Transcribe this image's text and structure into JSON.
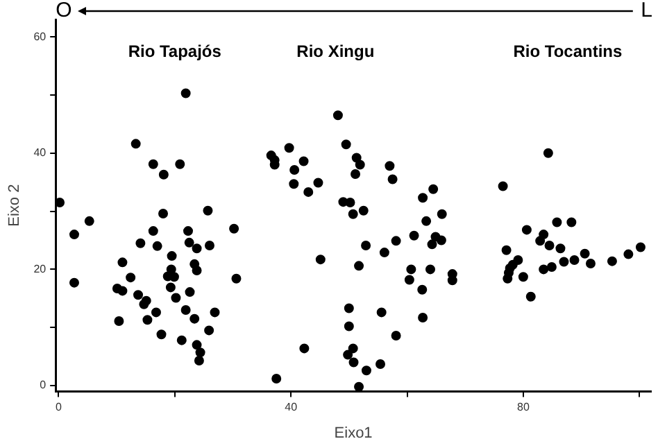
{
  "chart_data": {
    "type": "scatter",
    "xlabel": "Eixo1",
    "ylabel": "Eixo 2",
    "xlim": [
      -0.5,
      102
    ],
    "ylim": [
      -1,
      63
    ],
    "xticks": [
      0,
      {
        "value": 20,
        "label": null
      },
      40,
      {
        "value": 60,
        "label": null
      },
      80,
      {
        "value": 100,
        "label": null
      }
    ],
    "yticks": [
      0,
      {
        "value": 10,
        "label": null
      },
      20,
      {
        "value": 30,
        "label": null
      },
      40,
      {
        "value": 50,
        "label": null
      },
      60
    ],
    "grid": false,
    "legend": false,
    "marker": "circle",
    "annotations": [
      "O",
      "L",
      "Rio Tapajós",
      "Rio Xingu",
      "Rio Tocantins"
    ],
    "series": [
      {
        "color": "#000000",
        "x": [
          21.9,
          13.3,
          16.3,
          20.9,
          18.1,
          0.2,
          5.3,
          2.7,
          18.0,
          25.7,
          16.3,
          22.3,
          30.2,
          14.1,
          17.0,
          22.5,
          23.8,
          26.0,
          19.5,
          11.0,
          12.4,
          2.7,
          18.8,
          19.9,
          19.4,
          23.8,
          23.4,
          30.6,
          10.1,
          11.0,
          13.7,
          15.1,
          14.7,
          19.3,
          22.6,
          20.2,
          21.9,
          26.9,
          16.8,
          10.4,
          15.3,
          23.4,
          25.9,
          17.7,
          21.2,
          23.8,
          24.4,
          24.2
        ],
        "values": [
          50.3,
          41.6,
          38.1,
          38.1,
          36.3,
          31.5,
          28.3,
          26.0,
          29.6,
          30.1,
          26.6,
          26.6,
          27.0,
          24.5,
          24.0,
          24.6,
          23.6,
          24.1,
          22.3,
          21.2,
          18.6,
          17.7,
          18.8,
          18.7,
          20.0,
          19.8,
          20.9,
          18.4,
          16.7,
          16.3,
          15.6,
          14.6,
          14.0,
          16.9,
          16.1,
          15.1,
          13.0,
          12.6,
          12.6,
          11.1,
          11.3,
          11.5,
          9.5,
          8.8,
          7.8,
          7.0,
          5.7,
          4.3
        ]
      },
      {
        "color": "#000000",
        "x": [
          48.1,
          39.7,
          36.6,
          37.2,
          37.2,
          42.2,
          40.6,
          40.5,
          44.7,
          43.0,
          49.5,
          51.1,
          51.3,
          51.9,
          51.1,
          57.0,
          57.5,
          64.5,
          62.7,
          49.0,
          50.2,
          52.5,
          50.7,
          66.0,
          63.3,
          61.2,
          58.1,
          64.3,
          64.9,
          65.9,
          52.9,
          56.1,
          45.1,
          51.7,
          60.7,
          64.0,
          67.8,
          67.8,
          60.4,
          62.6,
          50.0,
          55.6,
          56.0,
          62.7,
          50.0,
          58.1,
          42.3,
          50.7,
          49.8,
          50.8,
          55.4,
          53.0,
          37.5,
          51.7
        ],
        "values": [
          46.5,
          40.9,
          39.6,
          38.8,
          38.0,
          38.6,
          37.1,
          34.7,
          34.9,
          33.3,
          41.5,
          null,
          39.2,
          38.0,
          36.4,
          37.8,
          35.5,
          33.8,
          32.3,
          31.6,
          31.5,
          30.1,
          29.5,
          29.5,
          28.3,
          25.8,
          24.9,
          24.3,
          25.6,
          25.0,
          24.1,
          22.9,
          21.7,
          20.6,
          20.0,
          20.0,
          19.2,
          18.1,
          18.2,
          16.5,
          13.3,
          12.6,
          null,
          11.7,
          10.2,
          8.6,
          6.4,
          6.4,
          5.3,
          4.0,
          3.7,
          2.6,
          1.2,
          -0.2
        ]
      },
      {
        "color": "#000000",
        "x": [
          84.3,
          76.5,
          85.8,
          88.3,
          80.6,
          83.5,
          82.9,
          84.5,
          86.4,
          77.1,
          90.6,
          88.8,
          91.6,
          95.3,
          98.1,
          100.2,
          79.5,
          79.1,
          78.2,
          77.7,
          77.5,
          80.0,
          83.5,
          84.9,
          87.0,
          77.3,
          81.3
        ],
        "values": [
          40.0,
          34.3,
          28.1,
          28.1,
          26.8,
          26.0,
          24.9,
          24.1,
          23.6,
          23.3,
          22.7,
          21.6,
          21.0,
          21.4,
          22.6,
          23.8,
          null,
          21.6,
          20.8,
          20.2,
          19.4,
          18.7,
          20.0,
          20.4,
          21.3,
          18.4,
          15.3
        ]
      }
    ]
  }
}
